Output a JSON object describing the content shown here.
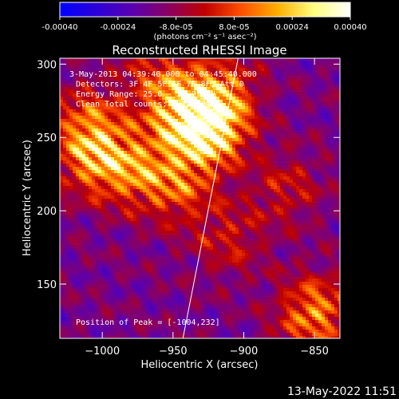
{
  "colorbar": {
    "tick_labels": [
      "-0.00040",
      "-0.00024",
      "-8.0e-05",
      "8.0e-05",
      "0.00024",
      "0.00040"
    ],
    "tick_values": [
      -0.0004,
      -0.00024,
      -8e-05,
      8e-05,
      0.00024,
      0.0004
    ],
    "range": [
      -0.0004,
      0.0004
    ],
    "colors": [
      "#0000ff",
      "#2a00d8",
      "#5a00b0",
      "#8a0060",
      "#c00000",
      "#ff5000",
      "#ffb000",
      "#ffff80",
      "#ffffff"
    ],
    "units": "(photons cm⁻² s⁻¹ asec⁻²)"
  },
  "chart_data": {
    "type": "heatmap",
    "title": "Reconstructed RHESSI Image",
    "xlabel": "Heliocentric X (arcsec)",
    "ylabel": "Heliocentric Y (arcsec)",
    "xlim": [
      -1030,
      -832
    ],
    "ylim": [
      113,
      304
    ],
    "x_ticks": [
      -1000,
      -950,
      -900,
      -850
    ],
    "x_tick_labels": [
      "−1000",
      "−950",
      "−900",
      "−850"
    ],
    "y_ticks": [
      150,
      200,
      250,
      300
    ],
    "y_tick_labels": [
      "150",
      "200",
      "250",
      "300"
    ],
    "annotations": [
      "3-May-2013 04:39:40.000 to 04:45:40.000",
      "Detectors: 3F 4F 5F 6F 7F 8F, Att 0",
      "Energy Range: 25.0 - 50.0 keV",
      "Clean     Total counts: 1.12E+04"
    ],
    "peak_label": "Position of Peak = [-1004,232]",
    "peak": [
      -1004,
      232
    ],
    "limb_line": [
      [
        -943,
        113
      ],
      [
        -904,
        304
      ]
    ],
    "hotspots": [
      {
        "x": -925,
        "y": 255,
        "amp": 1.0
      },
      {
        "x": -940,
        "y": 265,
        "amp": 0.8
      },
      {
        "x": -1005,
        "y": 235,
        "amp": 0.7
      },
      {
        "x": -975,
        "y": 228,
        "amp": 0.6
      },
      {
        "x": -1010,
        "y": 260,
        "amp": 0.55
      },
      {
        "x": -945,
        "y": 215,
        "amp": 0.5
      },
      {
        "x": -915,
        "y": 280,
        "amp": 0.55
      },
      {
        "x": -850,
        "y": 130,
        "amp": 0.75
      },
      {
        "x": -910,
        "y": 180,
        "amp": 0.35
      },
      {
        "x": -870,
        "y": 215,
        "amp": 0.35
      },
      {
        "x": -960,
        "y": 290,
        "amp": 0.45
      }
    ]
  },
  "timestamp": "13-May-2022 11:51"
}
